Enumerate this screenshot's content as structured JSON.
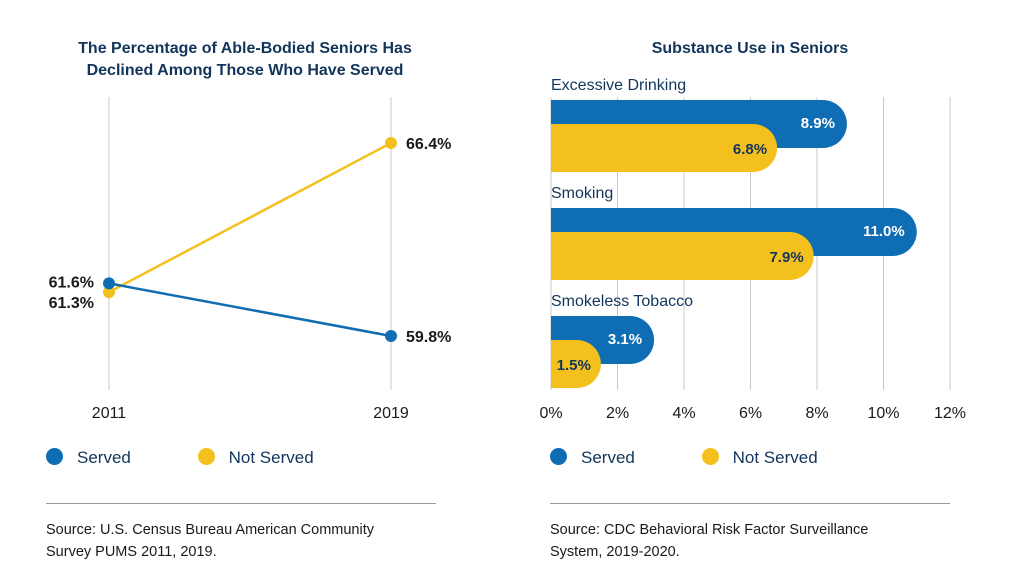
{
  "colors": {
    "served": "#0f6db3",
    "not_served": "#f4c01e",
    "grid": "#c8c8c8",
    "text_dark": "#12355b"
  },
  "left_panel": {
    "title_line1": "The Percentage of Able-Bodied Seniors Has",
    "title_line2": "Declined Among Those Who Have Served",
    "legend": {
      "served": "Served",
      "not_served": "Not Served"
    },
    "source_line1": "Source: U.S. Census Bureau American Community",
    "source_line2": "Survey PUMS 2011, 2019."
  },
  "right_panel": {
    "title": "Substance Use in Seniors",
    "legend": {
      "served": "Served",
      "not_served": "Not Served"
    },
    "source_line1": "Source: CDC Behavioral Risk Factor Surveillance",
    "source_line2": "System, 2019-2020."
  },
  "chart_data": [
    {
      "type": "line",
      "title": "The Percentage of Able-Bodied Seniors Has Declined Among Those Who Have Served",
      "x": [
        "2011",
        "2019"
      ],
      "series": [
        {
          "name": "Served",
          "values": [
            61.6,
            59.8
          ],
          "labels": [
            "61.6%",
            "59.8%"
          ]
        },
        {
          "name": "Not Served",
          "values": [
            61.3,
            66.4
          ],
          "labels": [
            "61.3%",
            "66.4%"
          ]
        }
      ],
      "ylim": [
        56,
        69
      ]
    },
    {
      "type": "bar",
      "orientation": "horizontal",
      "title": "Substance Use in Seniors",
      "categories": [
        "Excessive Drinking",
        "Smoking",
        "Smokeless Tobacco"
      ],
      "series": [
        {
          "name": "Served",
          "values": [
            8.9,
            11.0,
            3.1
          ],
          "labels": [
            "8.9%",
            "11.0%",
            "3.1%"
          ]
        },
        {
          "name": "Not Served",
          "values": [
            6.8,
            7.9,
            1.5
          ],
          "labels": [
            "6.8%",
            "7.9%",
            "1.5%"
          ]
        }
      ],
      "xlim": [
        0,
        12
      ],
      "xticks": [
        "0%",
        "2%",
        "4%",
        "6%",
        "8%",
        "10%",
        "12%"
      ]
    }
  ]
}
